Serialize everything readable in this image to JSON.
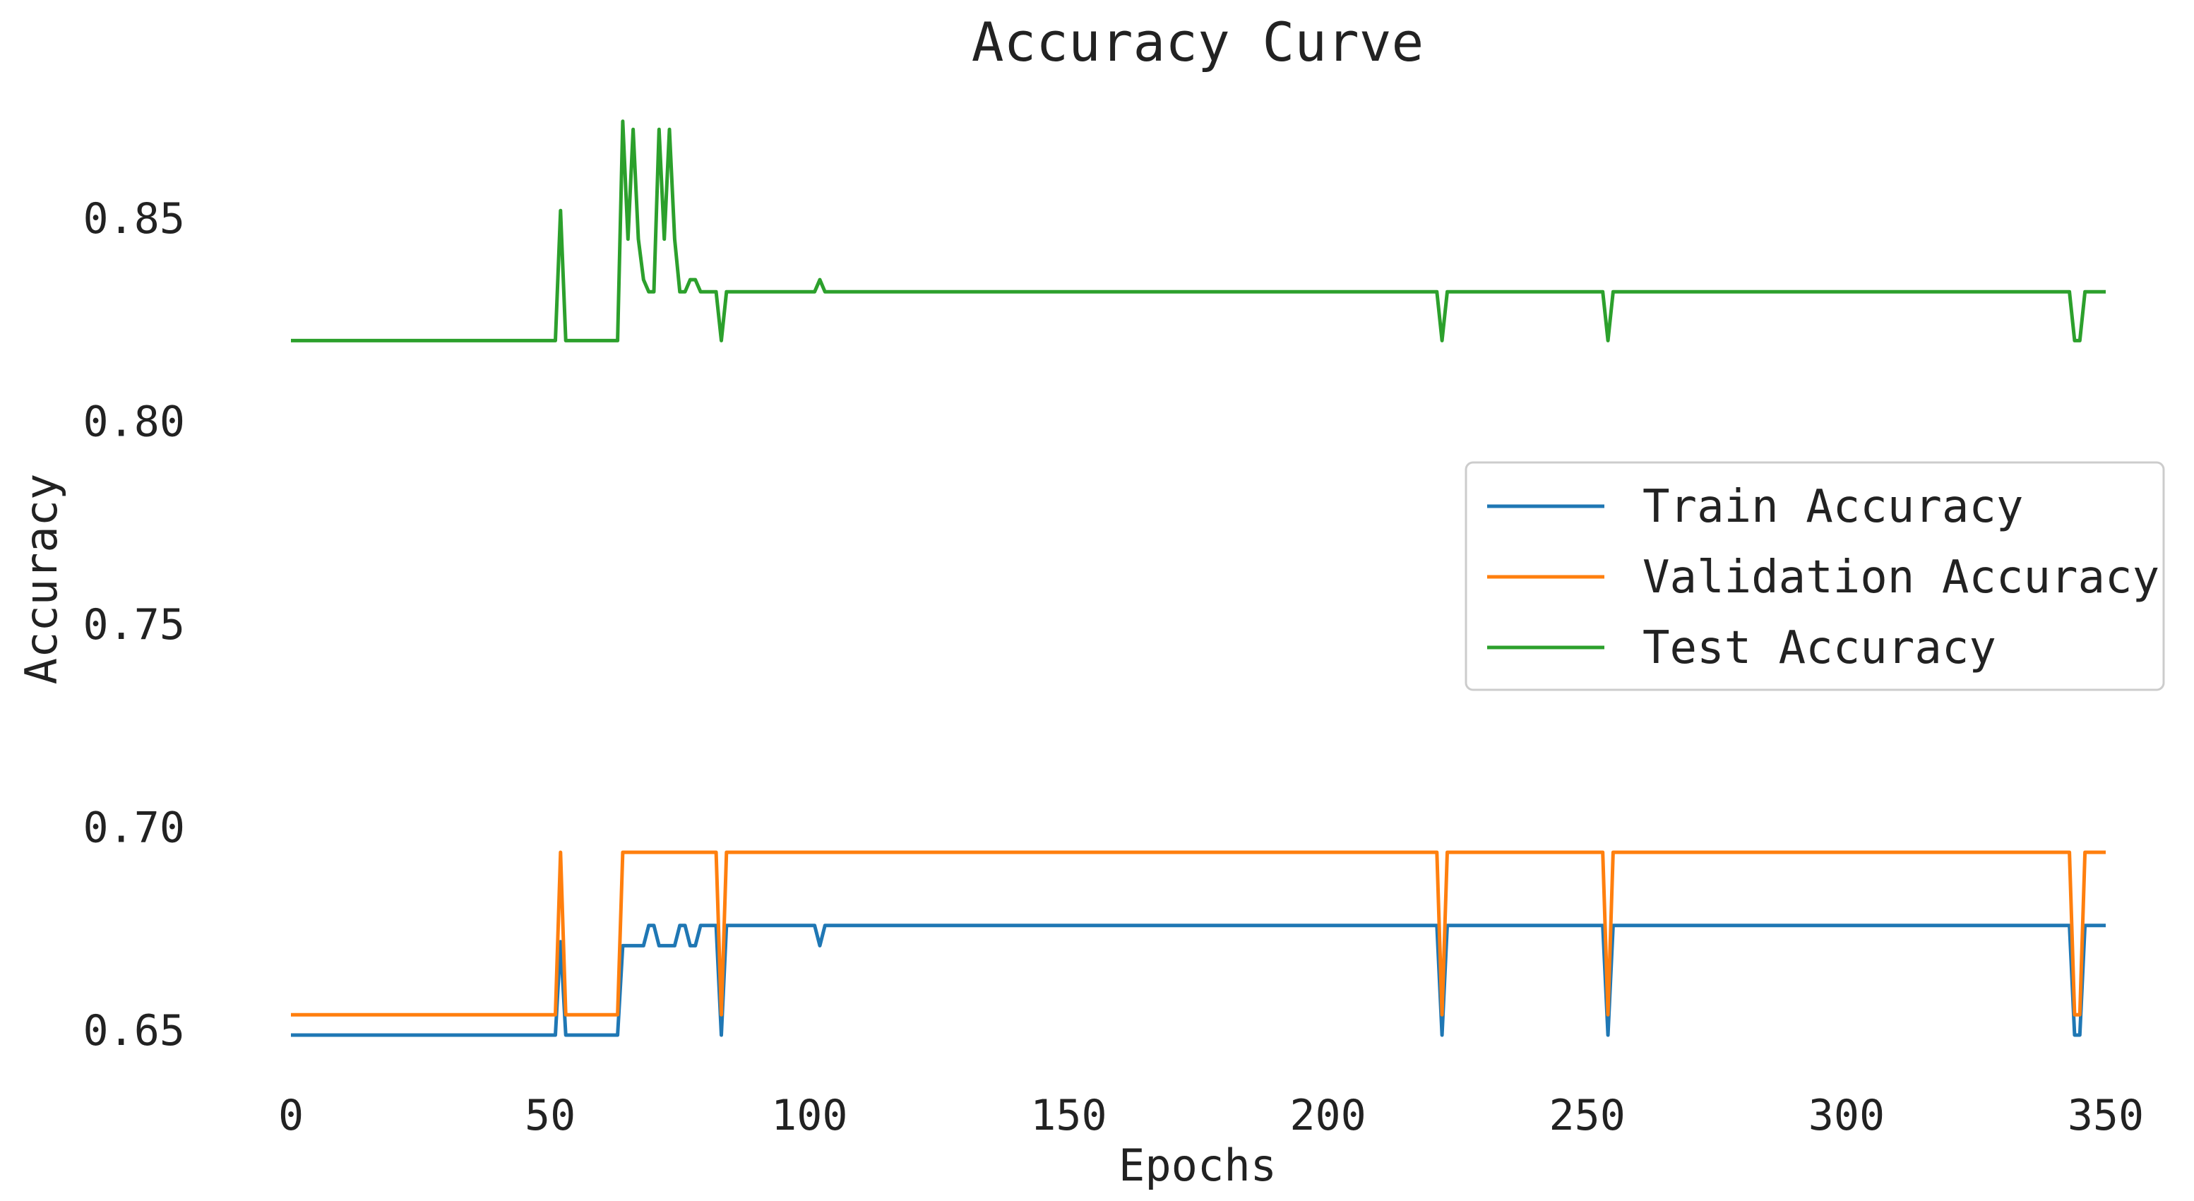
{
  "chart_data": {
    "type": "line",
    "title": "Accuracy Curve",
    "xlabel": "Epochs",
    "ylabel": "Accuracy",
    "xlim": [
      0,
      350
    ],
    "ylim": [
      0.645,
      0.875
    ],
    "xticks": [
      0,
      50,
      100,
      150,
      200,
      250,
      300,
      350
    ],
    "yticks": [
      0.65,
      0.7,
      0.75,
      0.8,
      0.85
    ],
    "ytick_labels": [
      "0.65",
      "0.70",
      "0.75",
      "0.80",
      "0.85"
    ],
    "grid": false,
    "legend_position": "center-right",
    "series": [
      {
        "name": "Train Accuracy",
        "color": "#1f77b4",
        "points": [
          [
            0,
            0.649
          ],
          [
            51,
            0.649
          ],
          [
            52,
            0.672
          ],
          [
            53,
            0.649
          ],
          [
            63,
            0.649
          ],
          [
            64,
            0.671
          ],
          [
            68,
            0.671
          ],
          [
            69,
            0.676
          ],
          [
            70,
            0.676
          ],
          [
            71,
            0.671
          ],
          [
            74,
            0.671
          ],
          [
            75,
            0.676
          ],
          [
            76,
            0.676
          ],
          [
            77,
            0.671
          ],
          [
            78,
            0.671
          ],
          [
            79,
            0.676
          ],
          [
            82,
            0.676
          ],
          [
            83,
            0.649
          ],
          [
            84,
            0.676
          ],
          [
            101,
            0.676
          ],
          [
            102,
            0.671
          ],
          [
            103,
            0.676
          ],
          [
            221,
            0.676
          ],
          [
            222,
            0.649
          ],
          [
            223,
            0.676
          ],
          [
            253,
            0.676
          ],
          [
            254,
            0.649
          ],
          [
            255,
            0.676
          ],
          [
            343,
            0.676
          ],
          [
            344,
            0.649
          ],
          [
            345,
            0.649
          ],
          [
            346,
            0.676
          ],
          [
            350,
            0.676
          ]
        ]
      },
      {
        "name": "Validation Accuracy",
        "color": "#ff7f0e",
        "points": [
          [
            0,
            0.654
          ],
          [
            51,
            0.654
          ],
          [
            52,
            0.694
          ],
          [
            53,
            0.654
          ],
          [
            63,
            0.654
          ],
          [
            64,
            0.694
          ],
          [
            82,
            0.694
          ],
          [
            83,
            0.654
          ],
          [
            84,
            0.694
          ],
          [
            221,
            0.694
          ],
          [
            222,
            0.654
          ],
          [
            223,
            0.694
          ],
          [
            253,
            0.694
          ],
          [
            254,
            0.654
          ],
          [
            255,
            0.694
          ],
          [
            343,
            0.694
          ],
          [
            344,
            0.654
          ],
          [
            345,
            0.654
          ],
          [
            346,
            0.694
          ],
          [
            350,
            0.694
          ]
        ]
      },
      {
        "name": "Test Accuracy",
        "color": "#2ca02c",
        "points": [
          [
            0,
            0.82
          ],
          [
            51,
            0.82
          ],
          [
            52,
            0.852
          ],
          [
            53,
            0.82
          ],
          [
            63,
            0.82
          ],
          [
            64,
            0.874
          ],
          [
            65,
            0.845
          ],
          [
            66,
            0.872
          ],
          [
            67,
            0.845
          ],
          [
            68,
            0.835
          ],
          [
            69,
            0.832
          ],
          [
            70,
            0.832
          ],
          [
            71,
            0.872
          ],
          [
            72,
            0.845
          ],
          [
            73,
            0.872
          ],
          [
            74,
            0.845
          ],
          [
            75,
            0.832
          ],
          [
            76,
            0.832
          ],
          [
            77,
            0.835
          ],
          [
            78,
            0.835
          ],
          [
            79,
            0.832
          ],
          [
            82,
            0.832
          ],
          [
            83,
            0.82
          ],
          [
            84,
            0.832
          ],
          [
            101,
            0.832
          ],
          [
            102,
            0.835
          ],
          [
            103,
            0.832
          ],
          [
            221,
            0.832
          ],
          [
            222,
            0.82
          ],
          [
            223,
            0.832
          ],
          [
            253,
            0.832
          ],
          [
            254,
            0.82
          ],
          [
            255,
            0.832
          ],
          [
            343,
            0.832
          ],
          [
            344,
            0.82
          ],
          [
            345,
            0.82
          ],
          [
            346,
            0.832
          ],
          [
            350,
            0.832
          ]
        ]
      }
    ]
  }
}
